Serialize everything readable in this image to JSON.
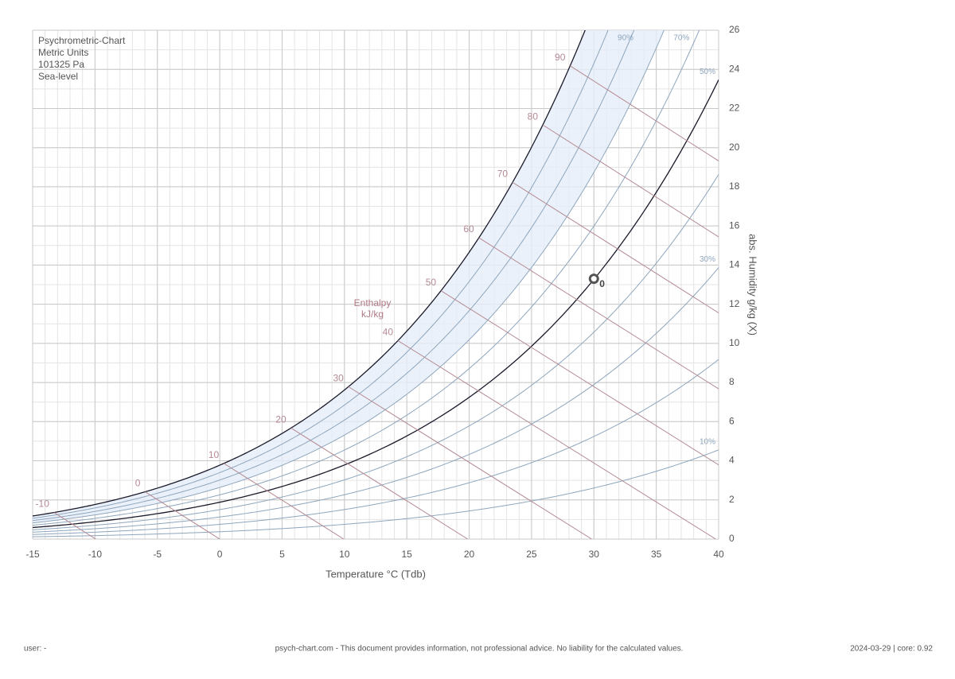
{
  "chart_data": {
    "type": "psychrometric",
    "title_lines": [
      "Psychrometric-Chart",
      "Metric Units",
      "101325 Pa",
      "Sea-level"
    ],
    "pressure": 101325,
    "xlabel": "Temperature °C (Tdb)",
    "ylabel": "abs. Humidity g/kg (X)",
    "xlim": [
      -15,
      40
    ],
    "xticks": [
      -15,
      -10,
      -5,
      0,
      5,
      10,
      15,
      20,
      25,
      30,
      35,
      40
    ],
    "ylim": [
      0,
      26
    ],
    "yticks": [
      0,
      2,
      4,
      6,
      8,
      10,
      12,
      14,
      16,
      18,
      20,
      22,
      24,
      26
    ],
    "minor_grid": [
      1,
      1
    ],
    "grid": true,
    "rh_lines": [
      {
        "value": 10,
        "label": "10%"
      },
      20,
      {
        "value": 30,
        "label": "30%"
      },
      40,
      {
        "value": 50,
        "label": "50%"
      },
      60,
      {
        "value": 70,
        "label": "70%"
      },
      80,
      {
        "value": 90,
        "label": "90%"
      },
      100
    ],
    "bold_rh": [
      50,
      100
    ],
    "rh_color": "#8ea6bd",
    "enthalpy_title": [
      "Enthalpy",
      "kJ/kg"
    ],
    "enthalpy_lines": [
      -10,
      0,
      10,
      20,
      30,
      40,
      50,
      60,
      70,
      80,
      90
    ],
    "enthalpy_color": "#b48a93",
    "points": [
      {
        "x": 30,
        "y": 13.3,
        "label": "0"
      }
    ]
  },
  "footer": {
    "left": "user: -",
    "center": "psych-chart.com - This document provides information, not professional advice. No liability for the calculated values.",
    "right": "2024-03-29 | core: 0.92"
  }
}
